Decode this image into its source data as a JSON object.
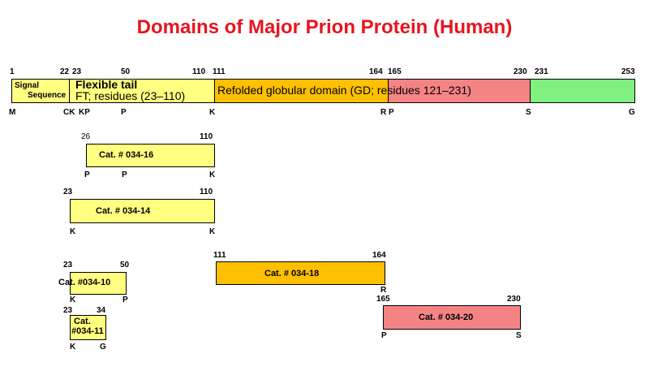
{
  "title": "Domains of Major Prion Protein (Human)",
  "main_bar": {
    "positions": [
      "1",
      "22",
      "23",
      "50",
      "110",
      "111",
      "164",
      "165",
      "230",
      "231",
      "253"
    ],
    "signal_label": [
      "Signal",
      "Sequence"
    ],
    "flexible_label": [
      "Flexible tail",
      "FT; residues (23–110)"
    ],
    "globular_label": "Refolded globular domain (GD; residues 121–231)",
    "residues": [
      "M",
      "CK",
      "KP",
      "P",
      "K",
      "R",
      "P",
      "S",
      "G"
    ]
  },
  "fragments": [
    {
      "label": "Cat. # 034-16",
      "start": "26",
      "end": "110",
      "residues": [
        "P",
        "P",
        "K"
      ]
    },
    {
      "label": "Cat. # 034-14",
      "start": "23",
      "end": "110",
      "residues": [
        "K",
        "K"
      ]
    },
    {
      "label": "Cat. #034-10",
      "start": "23",
      "end": "50",
      "residues": [
        "K",
        "P"
      ]
    },
    {
      "label": [
        "Cat.",
        "#034-11"
      ],
      "start": "23",
      "end": "34",
      "residues": [
        "K",
        "G"
      ]
    },
    {
      "label": "Cat. # 034-18",
      "start": "111",
      "end": "164",
      "residues": [
        "R"
      ]
    },
    {
      "label": "Cat. # 034-20",
      "start": "165",
      "end": "230",
      "residues": [
        "P",
        "S"
      ]
    }
  ]
}
